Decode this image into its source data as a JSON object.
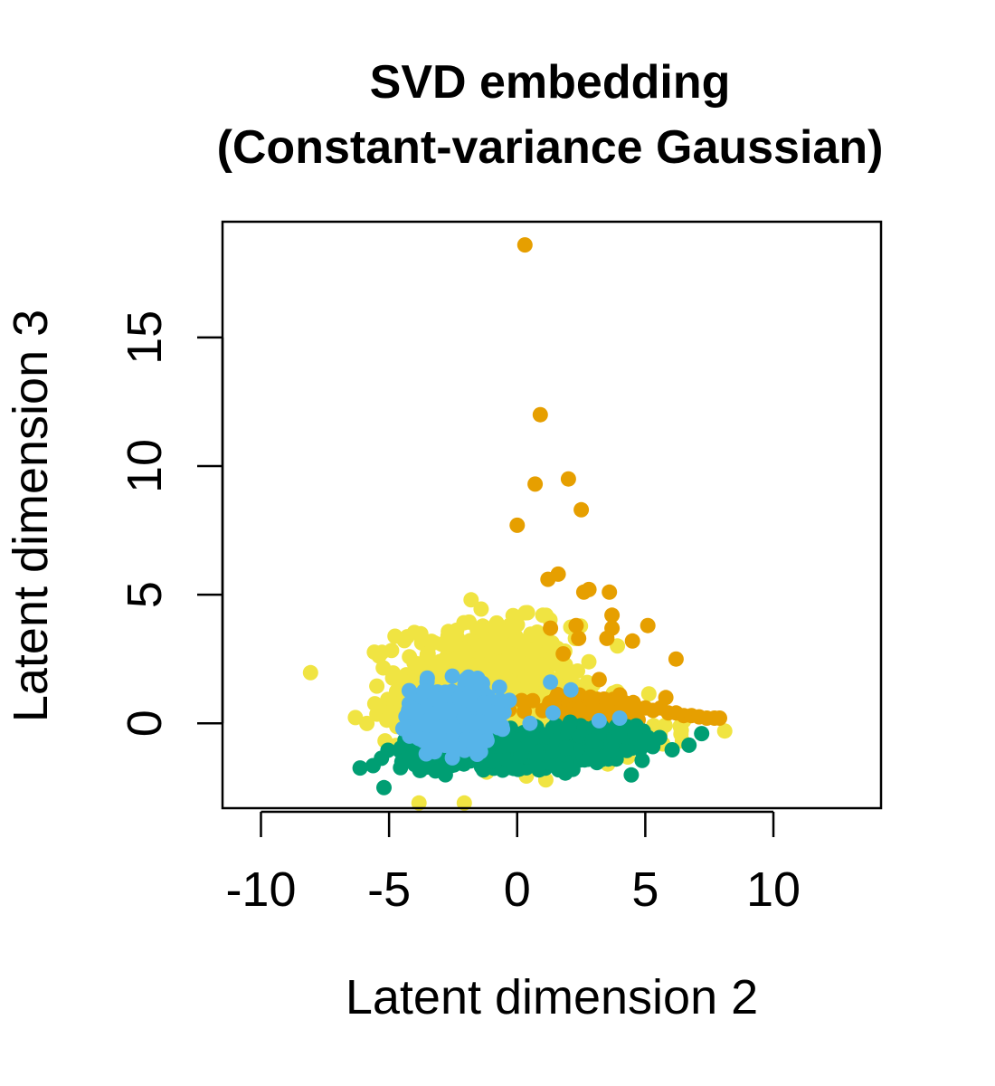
{
  "chart_data": {
    "type": "scatter",
    "title": [
      "SVD embedding",
      "(Constant-variance Gaussian)"
    ],
    "xlabel": "Latent dimension 2",
    "ylabel": "Latent dimension 3",
    "xlim": [
      -11.5,
      14.2
    ],
    "ylim": [
      -3.3,
      19.5
    ],
    "xticks": [
      -10,
      -5,
      0,
      5,
      10
    ],
    "yticks": [
      0,
      5,
      10,
      15
    ],
    "grid": false,
    "legend": "none",
    "series": [
      {
        "color": "#F0E442",
        "clusters": [
          {
            "cx": -1.2,
            "cy": 1.4,
            "sx": 1.7,
            "sy": 1.2,
            "n": 700
          },
          {
            "cx": 1.5,
            "cy": -0.4,
            "sx": 2.2,
            "sy": 0.45,
            "n": 220
          },
          {
            "cx": -3.5,
            "cy": 0.1,
            "sx": 0.9,
            "sy": 0.5,
            "n": 60
          }
        ],
        "points": [
          [
            -1.8,
            4.8
          ],
          [
            0.4,
            4.3
          ],
          [
            1.0,
            4.2
          ],
          [
            -0.8,
            3.9
          ],
          [
            -0.3,
            3.8
          ],
          [
            -3.5,
            2.7
          ],
          [
            -2.7,
            3.4
          ],
          [
            -4.7,
            0.4
          ],
          [
            -4.6,
            0.3
          ],
          [
            -4.0,
            0.9
          ],
          [
            8.1,
            -0.3
          ],
          [
            4.7,
            -0.5
          ],
          [
            6.5,
            0.1
          ]
        ]
      },
      {
        "color": "#E69F00",
        "clusters": [
          {
            "cx": 3.0,
            "cy": 0.6,
            "sx": 1.2,
            "sy": 0.25,
            "n": 80
          }
        ],
        "points": [
          [
            0.3,
            18.6
          ],
          [
            0.9,
            12.0
          ],
          [
            0.7,
            9.3
          ],
          [
            2.0,
            9.5
          ],
          [
            2.5,
            8.3
          ],
          [
            0.0,
            7.7
          ],
          [
            1.6,
            5.8
          ],
          [
            1.2,
            5.6
          ],
          [
            2.6,
            5.1
          ],
          [
            2.8,
            5.2
          ],
          [
            3.6,
            5.1
          ],
          [
            3.7,
            4.2
          ],
          [
            1.3,
            3.7
          ],
          [
            2.3,
            3.8
          ],
          [
            3.7,
            3.7
          ],
          [
            2.4,
            3.3
          ],
          [
            3.5,
            3.3
          ],
          [
            4.5,
            3.2
          ],
          [
            5.1,
            3.8
          ],
          [
            1.8,
            2.7
          ],
          [
            6.2,
            2.5
          ],
          [
            3.2,
            1.7
          ],
          [
            4.0,
            1.1
          ],
          [
            5.0,
            0.6
          ],
          [
            5.3,
            0.5
          ],
          [
            5.6,
            0.6
          ],
          [
            5.9,
            0.4
          ],
          [
            6.2,
            0.4
          ],
          [
            6.5,
            0.3
          ],
          [
            6.8,
            0.3
          ],
          [
            7.1,
            0.25
          ],
          [
            7.4,
            0.2
          ],
          [
            7.7,
            0.2
          ],
          [
            7.9,
            0.2
          ],
          [
            5.8,
            1.0
          ],
          [
            4.5,
            0.7
          ],
          [
            4.2,
            0.8
          ],
          [
            3.9,
            0.6
          ],
          [
            3.5,
            0.7
          ]
        ]
      },
      {
        "color": "#009E73",
        "clusters": [
          {
            "cx": 0.3,
            "cy": -1.0,
            "sx": 2.0,
            "sy": 0.35,
            "n": 520
          },
          {
            "cx": 3.0,
            "cy": -0.55,
            "sx": 1.0,
            "sy": 0.25,
            "n": 100
          },
          {
            "cx": -3.5,
            "cy": -1.3,
            "sx": 0.6,
            "sy": 0.25,
            "n": 40
          }
        ],
        "points": [
          [
            -5.2,
            -2.5
          ],
          [
            -2.8,
            -2.0
          ],
          [
            -3.5,
            -1.7
          ],
          [
            -4.0,
            -1.6
          ],
          [
            -4.5,
            -1.5
          ],
          [
            -4.2,
            -1.4
          ],
          [
            7.2,
            -0.4
          ],
          [
            5.1,
            -0.55
          ],
          [
            4.6,
            -0.4
          ],
          [
            4.0,
            -0.5
          ]
        ]
      },
      {
        "color": "#56B4E9",
        "clusters": [
          {
            "cx": -2.6,
            "cy": 0.25,
            "sx": 0.8,
            "sy": 0.55,
            "n": 340
          },
          {
            "cx": -1.8,
            "cy": 1.2,
            "sx": 0.4,
            "sy": 0.35,
            "n": 40
          }
        ],
        "points": [
          [
            -4.2,
            -0.5
          ],
          [
            -3.8,
            -0.6
          ],
          [
            -3.1,
            -0.3
          ],
          [
            -1.3,
            0.8
          ],
          [
            -0.6,
            -0.1
          ],
          [
            0.5,
            0.0
          ],
          [
            1.3,
            1.6
          ],
          [
            1.4,
            0.4
          ],
          [
            2.1,
            1.3
          ],
          [
            3.2,
            0.1
          ],
          [
            4.0,
            0.2
          ]
        ]
      }
    ]
  }
}
